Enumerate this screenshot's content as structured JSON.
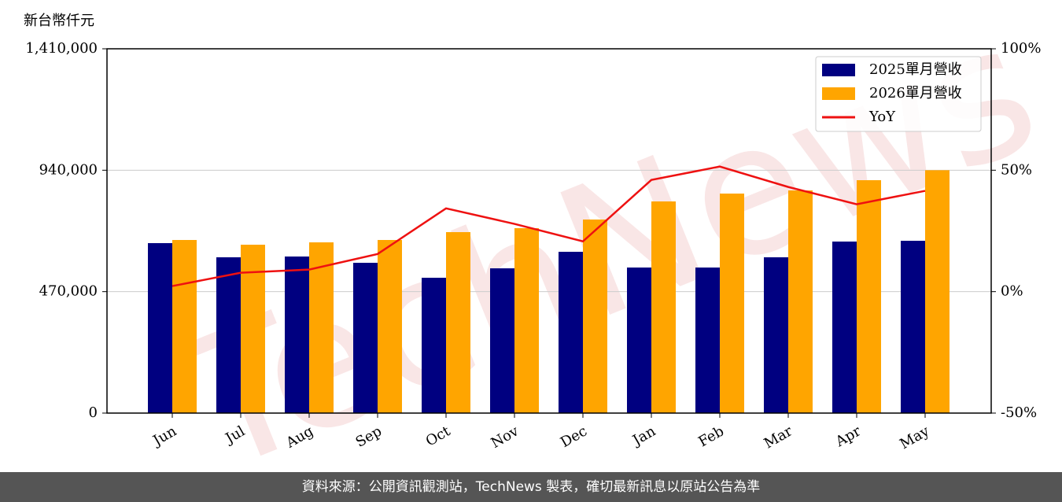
{
  "chart_data": {
    "type": "bar",
    "y_axis_title": "新台幣仟元",
    "watermark": "TechNews",
    "categories": [
      "Jun",
      "Jul",
      "Aug",
      "Sep",
      "Oct",
      "Nov",
      "Dec",
      "Jan",
      "Feb",
      "Mar",
      "Apr",
      "May"
    ],
    "series": [
      {
        "name": "2025單月營收",
        "color": "#000080",
        "values": [
          657800,
          603000,
          606000,
          581700,
          523800,
          560300,
          624300,
          563400,
          563400,
          603000,
          663900,
          666900
        ]
      },
      {
        "name": "2026單月營收",
        "color": "#ffa500",
        "values": [
          670000,
          651700,
          660800,
          670000,
          700400,
          715700,
          749200,
          819200,
          849600,
          861800,
          901400,
          940000
        ]
      },
      {
        "name": "YoY",
        "type": "line",
        "axis": "y2",
        "color": "#ee1111",
        "values": [
          2.3,
          7.8,
          9.1,
          15.5,
          34.3,
          27.9,
          20.7,
          46,
          51.5,
          43.1,
          36,
          41.5
        ]
      }
    ],
    "ylim": [
      0,
      1410000
    ],
    "yticks": [
      0,
      {
        "value": 470000,
        "label": "470,000"
      },
      {
        "value": 940000,
        "label": "940,000"
      },
      {
        "value": 1410000,
        "label": "1,410,000"
      }
    ],
    "y2lim": [
      -50,
      100
    ],
    "y2ticks": [
      {
        "value": -50,
        "label": "-50%"
      },
      {
        "value": 0,
        "label": "0%"
      },
      {
        "value": 50,
        "label": "50%"
      },
      {
        "value": 100,
        "label": "100%"
      }
    ],
    "grid": true,
    "legend": "upper right"
  },
  "footer": "資料來源：公開資訊觀測站，TechNews 製表，確切最新訊息以原站公告為準"
}
